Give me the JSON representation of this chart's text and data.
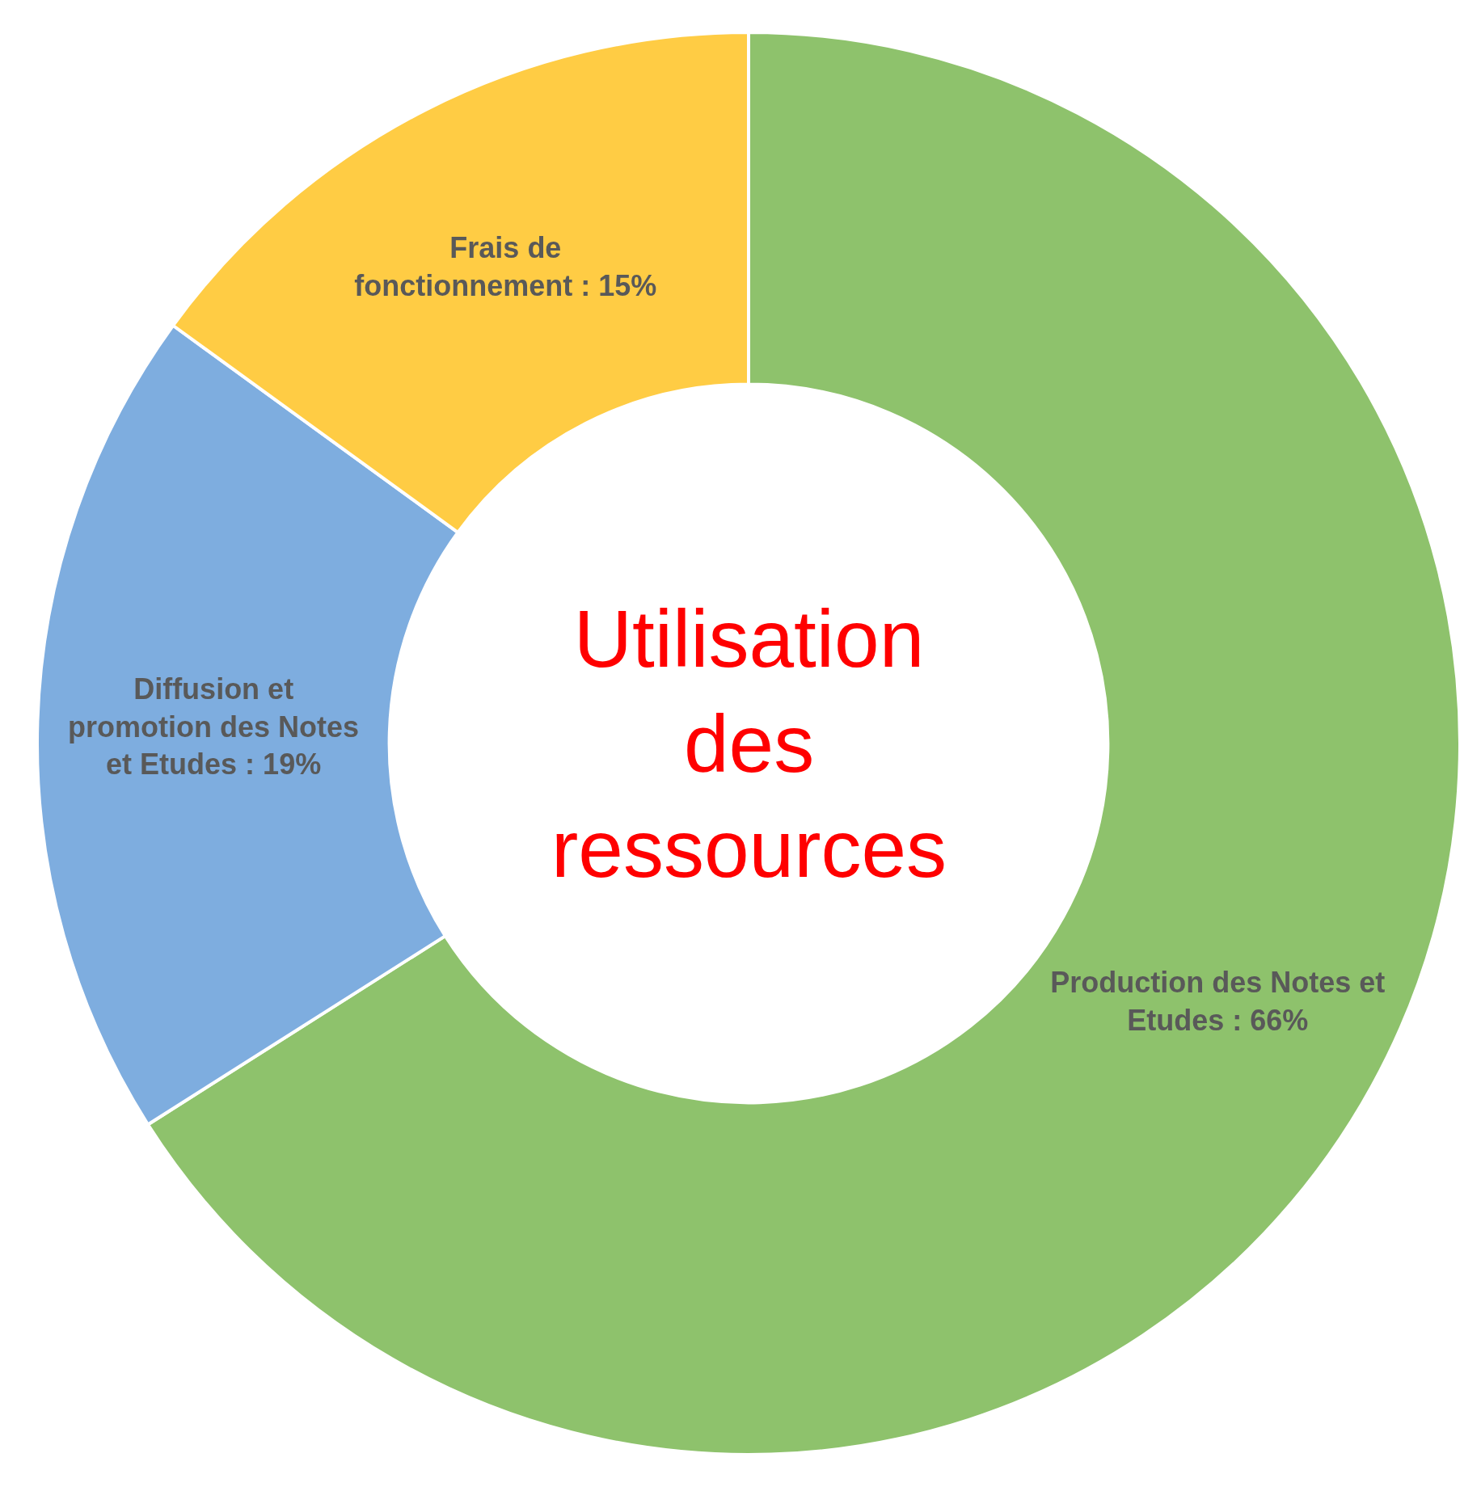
{
  "chart_data": {
    "type": "donut",
    "title": "Utilisation des ressources",
    "categories": [
      "Production des Notes et Etudes",
      "Diffusion et promotion des Notes et Etudes",
      "Frais de fonctionnement"
    ],
    "values": [
      66,
      19,
      15
    ],
    "colors": [
      "#8ec26c",
      "#7eaddf",
      "#ffcc44"
    ],
    "value_labels": [
      "66%",
      "19%",
      "15%"
    ],
    "legend": false
  }
}
